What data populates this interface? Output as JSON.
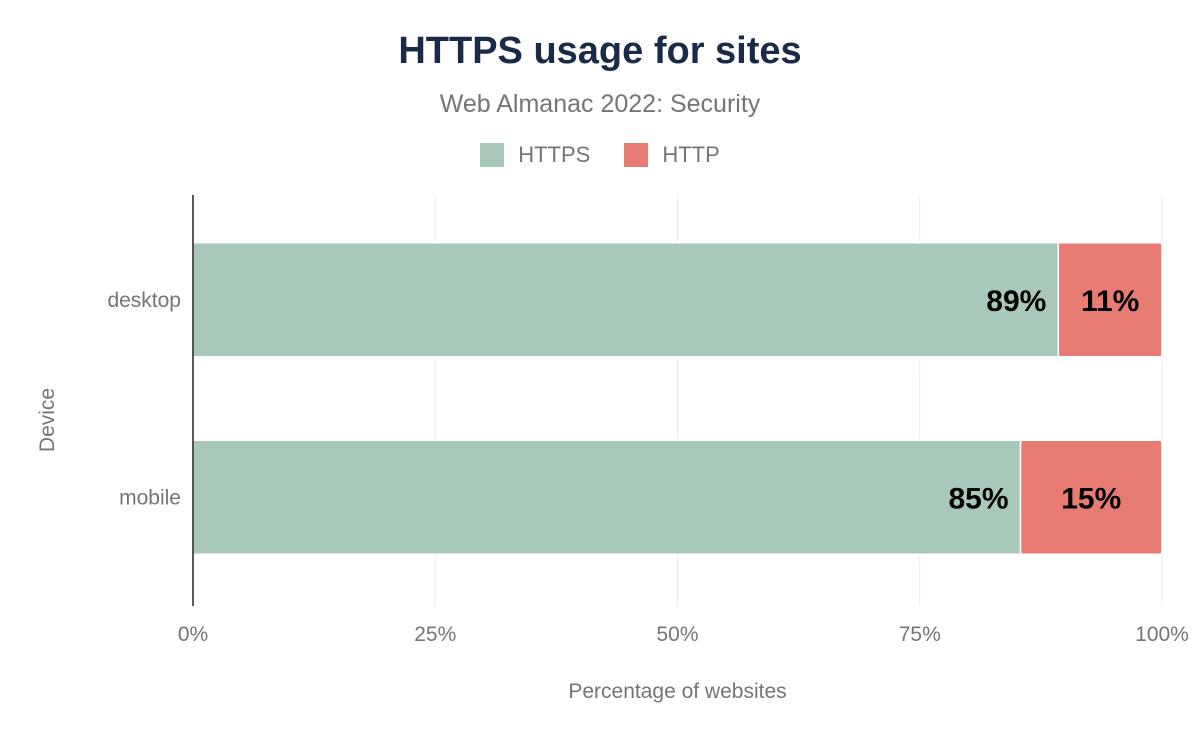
{
  "chart_data": {
    "type": "bar",
    "orientation": "horizontal",
    "stacked": true,
    "title": "HTTPS usage for sites",
    "subtitle": "Web Almanac 2022: Security",
    "xlabel": "Percentage of websites",
    "ylabel": "Device",
    "xlim": [
      0,
      100
    ],
    "x_ticks": [
      "0%",
      "25%",
      "50%",
      "75%",
      "100%"
    ],
    "x_tick_values": [
      0,
      25,
      50,
      75,
      100
    ],
    "grid": true,
    "legend_placement": "top",
    "categories": [
      "desktop",
      "mobile"
    ],
    "series": [
      {
        "name": "HTTPS",
        "color": "#a8c9ba",
        "values": [
          89.3,
          85.4
        ],
        "labels": [
          "89%",
          "85%"
        ]
      },
      {
        "name": "HTTP",
        "color": "#e87b72",
        "values": [
          10.7,
          14.6
        ],
        "labels": [
          "11%",
          "15%"
        ]
      }
    ]
  }
}
